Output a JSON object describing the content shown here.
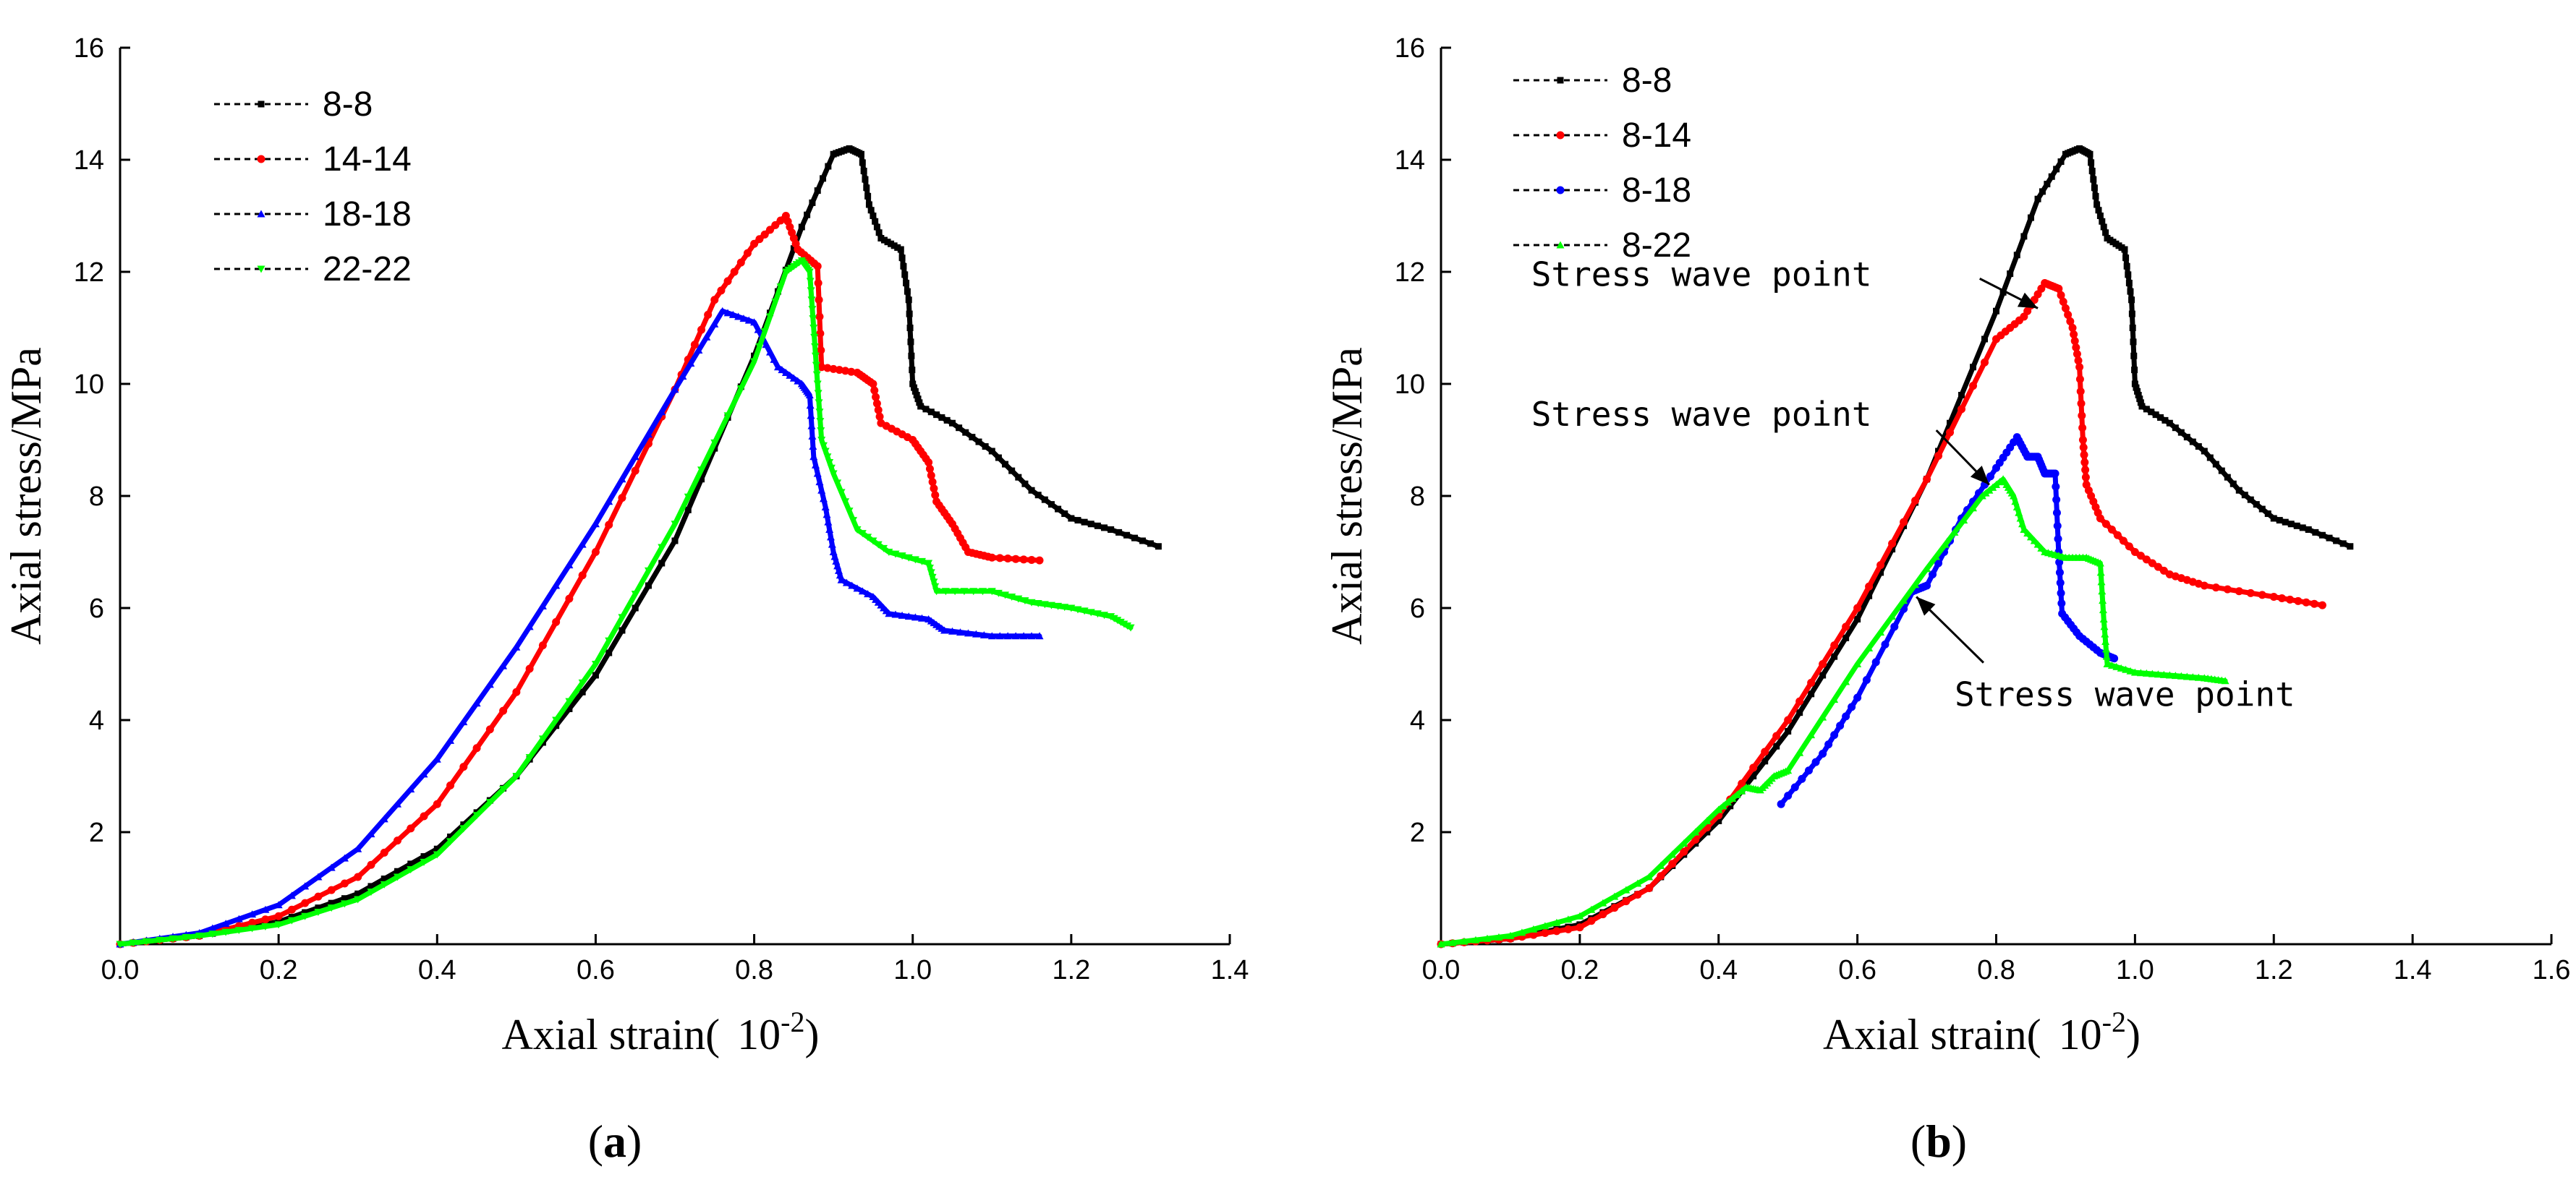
{
  "chart_data": [
    {
      "id": "a",
      "type": "line",
      "panel_label": "a",
      "xlabel": "Axial strain(",
      "xlabel_unit_base": "10",
      "xlabel_unit_exp": "-2",
      "xlabel_close": ")",
      "ylabel": "Axial stress/MPa",
      "xlim": [
        0,
        1.4
      ],
      "ylim": [
        0,
        16
      ],
      "x_ticks": [
        "0.0",
        "0.2",
        "0.4",
        "0.6",
        "0.8",
        "1.0",
        "1.2",
        "1.4"
      ],
      "y_ticks": [
        "2",
        "4",
        "6",
        "8",
        "10",
        "12",
        "14",
        "16"
      ],
      "legend_position": "top-left",
      "series": [
        {
          "name": "8-8",
          "color": "#000000",
          "marker": "square",
          "points": [
            [
              0,
              0
            ],
            [
              0.1,
              0.15
            ],
            [
              0.2,
              0.4
            ],
            [
              0.3,
              0.9
            ],
            [
              0.4,
              1.7
            ],
            [
              0.5,
              3.0
            ],
            [
              0.6,
              4.8
            ],
            [
              0.7,
              7.2
            ],
            [
              0.8,
              10.5
            ],
            [
              0.86,
              12.8
            ],
            [
              0.9,
              14.1
            ],
            [
              0.92,
              14.2
            ],
            [
              0.935,
              14.1
            ],
            [
              0.945,
              13.2
            ],
            [
              0.96,
              12.6
            ],
            [
              0.985,
              12.4
            ],
            [
              0.995,
              11.5
            ],
            [
              1.0,
              10.0
            ],
            [
              1.01,
              9.6
            ],
            [
              1.05,
              9.3
            ],
            [
              1.1,
              8.8
            ],
            [
              1.15,
              8.1
            ],
            [
              1.2,
              7.6
            ],
            [
              1.25,
              7.4
            ],
            [
              1.31,
              7.1
            ]
          ]
        },
        {
          "name": "14-14",
          "color": "#ff0000",
          "marker": "circle",
          "points": [
            [
              0,
              0
            ],
            [
              0.1,
              0.15
            ],
            [
              0.2,
              0.5
            ],
            [
              0.3,
              1.2
            ],
            [
              0.4,
              2.5
            ],
            [
              0.5,
              4.5
            ],
            [
              0.6,
              7.0
            ],
            [
              0.7,
              9.9
            ],
            [
              0.75,
              11.5
            ],
            [
              0.8,
              12.5
            ],
            [
              0.84,
              13.0
            ],
            [
              0.855,
              12.4
            ],
            [
              0.88,
              12.1
            ],
            [
              0.885,
              10.3
            ],
            [
              0.93,
              10.2
            ],
            [
              0.95,
              10.0
            ],
            [
              0.96,
              9.3
            ],
            [
              1.0,
              9.0
            ],
            [
              1.02,
              8.6
            ],
            [
              1.03,
              7.9
            ],
            [
              1.05,
              7.5
            ],
            [
              1.07,
              7.0
            ],
            [
              1.1,
              6.9
            ],
            [
              1.16,
              6.85
            ]
          ]
        },
        {
          "name": "18-18",
          "color": "#0000ff",
          "marker": "triangle-up",
          "points": [
            [
              0,
              0
            ],
            [
              0.1,
              0.2
            ],
            [
              0.2,
              0.7
            ],
            [
              0.3,
              1.7
            ],
            [
              0.4,
              3.3
            ],
            [
              0.5,
              5.3
            ],
            [
              0.6,
              7.5
            ],
            [
              0.7,
              9.9
            ],
            [
              0.76,
              11.3
            ],
            [
              0.8,
              11.1
            ],
            [
              0.83,
              10.3
            ],
            [
              0.86,
              10.0
            ],
            [
              0.87,
              9.8
            ],
            [
              0.875,
              8.7
            ],
            [
              0.89,
              7.8
            ],
            [
              0.9,
              7.0
            ],
            [
              0.91,
              6.5
            ],
            [
              0.95,
              6.2
            ],
            [
              0.97,
              5.9
            ],
            [
              1.02,
              5.8
            ],
            [
              1.04,
              5.6
            ],
            [
              1.1,
              5.5
            ],
            [
              1.16,
              5.5
            ]
          ]
        },
        {
          "name": "22-22",
          "color": "#00ff00",
          "marker": "triangle-down",
          "points": [
            [
              0,
              0
            ],
            [
              0.1,
              0.15
            ],
            [
              0.2,
              0.35
            ],
            [
              0.3,
              0.8
            ],
            [
              0.4,
              1.6
            ],
            [
              0.5,
              3.0
            ],
            [
              0.6,
              5.0
            ],
            [
              0.7,
              7.5
            ],
            [
              0.8,
              10.4
            ],
            [
              0.84,
              12.0
            ],
            [
              0.86,
              12.2
            ],
            [
              0.87,
              12.0
            ],
            [
              0.875,
              11.0
            ],
            [
              0.88,
              10.0
            ],
            [
              0.885,
              9.0
            ],
            [
              0.9,
              8.4
            ],
            [
              0.93,
              7.4
            ],
            [
              0.97,
              7.0
            ],
            [
              1.02,
              6.8
            ],
            [
              1.03,
              6.3
            ],
            [
              1.1,
              6.3
            ],
            [
              1.15,
              6.1
            ],
            [
              1.2,
              6.0
            ],
            [
              1.25,
              5.85
            ],
            [
              1.275,
              5.65
            ]
          ]
        }
      ],
      "annotations": []
    },
    {
      "id": "b",
      "type": "line",
      "panel_label": "b",
      "xlabel": "Axial strain(",
      "xlabel_unit_base": "10",
      "xlabel_unit_exp": "-2",
      "xlabel_close": ")",
      "ylabel": "Axial stress/MPa",
      "xlim": [
        0,
        1.6
      ],
      "ylim": [
        0,
        16
      ],
      "x_ticks": [
        "0.0",
        "0.2",
        "0.4",
        "0.6",
        "0.8",
        "1.0",
        "1.2",
        "1.4",
        "1.6"
      ],
      "y_ticks": [
        "2",
        "4",
        "6",
        "8",
        "10",
        "12",
        "14",
        "16"
      ],
      "legend_position": "top-left",
      "series": [
        {
          "name": "8-8",
          "color": "#000000",
          "marker": "square",
          "points": [
            [
              0,
              0
            ],
            [
              0.1,
              0.1
            ],
            [
              0.2,
              0.35
            ],
            [
              0.3,
              1.0
            ],
            [
              0.4,
              2.2
            ],
            [
              0.5,
              3.8
            ],
            [
              0.6,
              5.8
            ],
            [
              0.7,
              8.3
            ],
            [
              0.8,
              11.3
            ],
            [
              0.86,
              13.3
            ],
            [
              0.9,
              14.1
            ],
            [
              0.92,
              14.2
            ],
            [
              0.935,
              14.1
            ],
            [
              0.945,
              13.2
            ],
            [
              0.96,
              12.6
            ],
            [
              0.985,
              12.4
            ],
            [
              0.995,
              11.5
            ],
            [
              1.0,
              10.0
            ],
            [
              1.01,
              9.6
            ],
            [
              1.05,
              9.3
            ],
            [
              1.1,
              8.8
            ],
            [
              1.15,
              8.1
            ],
            [
              1.2,
              7.6
            ],
            [
              1.25,
              7.4
            ],
            [
              1.31,
              7.1
            ]
          ]
        },
        {
          "name": "8-14",
          "color": "#ff0000",
          "marker": "circle",
          "points": [
            [
              0,
              0
            ],
            [
              0.1,
              0.1
            ],
            [
              0.2,
              0.3
            ],
            [
              0.3,
              1.0
            ],
            [
              0.4,
              2.3
            ],
            [
              0.5,
              4.0
            ],
            [
              0.6,
              6.0
            ],
            [
              0.7,
              8.3
            ],
            [
              0.8,
              10.8
            ],
            [
              0.84,
              11.2
            ],
            [
              0.87,
              11.8
            ],
            [
              0.89,
              11.7
            ],
            [
              0.91,
              11.0
            ],
            [
              0.92,
              10.3
            ],
            [
              0.925,
              9.0
            ],
            [
              0.93,
              8.2
            ],
            [
              0.95,
              7.6
            ],
            [
              1.0,
              7.0
            ],
            [
              1.05,
              6.6
            ],
            [
              1.1,
              6.4
            ],
            [
              1.2,
              6.2
            ],
            [
              1.27,
              6.05
            ]
          ]
        },
        {
          "name": "8-18",
          "color": "#0000ff",
          "marker": "circle",
          "points": [
            [
              0.49,
              2.5
            ],
            [
              0.55,
              3.4
            ],
            [
              0.6,
              4.4
            ],
            [
              0.68,
              6.3
            ],
            [
              0.7,
              6.4
            ],
            [
              0.75,
              7.6
            ],
            [
              0.8,
              8.5
            ],
            [
              0.83,
              9.05
            ],
            [
              0.845,
              8.7
            ],
            [
              0.86,
              8.7
            ],
            [
              0.87,
              8.4
            ],
            [
              0.885,
              8.4
            ],
            [
              0.89,
              7.0
            ],
            [
              0.895,
              5.9
            ],
            [
              0.92,
              5.5
            ],
            [
              0.95,
              5.2
            ],
            [
              0.97,
              5.1
            ]
          ]
        },
        {
          "name": "8-22",
          "color": "#00ff00",
          "marker": "triangle-up",
          "points": [
            [
              0,
              0
            ],
            [
              0.1,
              0.15
            ],
            [
              0.2,
              0.5
            ],
            [
              0.3,
              1.2
            ],
            [
              0.4,
              2.4
            ],
            [
              0.44,
              2.8
            ],
            [
              0.46,
              2.75
            ],
            [
              0.48,
              3.0
            ],
            [
              0.5,
              3.1
            ],
            [
              0.6,
              5.0
            ],
            [
              0.7,
              6.7
            ],
            [
              0.78,
              8.0
            ],
            [
              0.81,
              8.3
            ],
            [
              0.825,
              8.0
            ],
            [
              0.84,
              7.4
            ],
            [
              0.87,
              7.0
            ],
            [
              0.9,
              6.9
            ],
            [
              0.93,
              6.9
            ],
            [
              0.95,
              6.8
            ],
            [
              0.955,
              5.8
            ],
            [
              0.96,
              5.0
            ],
            [
              1.0,
              4.85
            ],
            [
              1.05,
              4.8
            ],
            [
              1.1,
              4.75
            ],
            [
              1.13,
              4.7
            ]
          ]
        }
      ],
      "annotations": [
        {
          "text": "Stress wave point",
          "x": 0.13,
          "y": 11.75,
          "target": [
            0.86,
            11.35
          ]
        },
        {
          "text": "Stress wave point",
          "x": 0.13,
          "y": 9.25,
          "target": [
            0.79,
            8.2
          ]
        },
        {
          "text": "Stress wave point",
          "x": 0.74,
          "y": 4.25,
          "target": [
            0.685,
            6.2
          ]
        }
      ]
    }
  ]
}
